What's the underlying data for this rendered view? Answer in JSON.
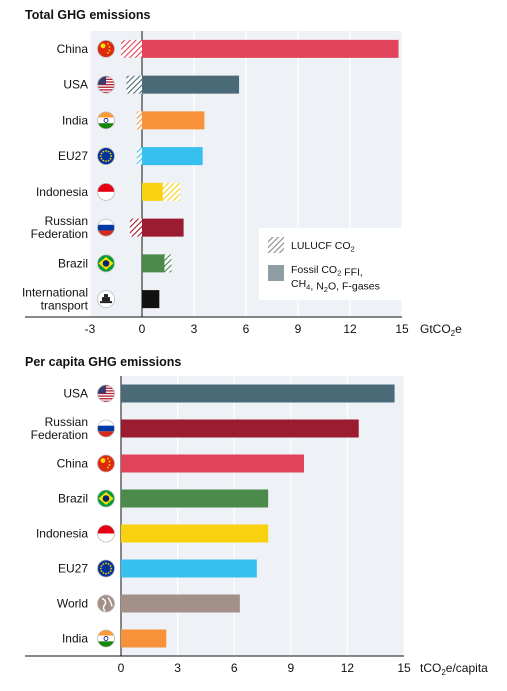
{
  "chart_data": [
    {
      "type": "bar",
      "orientation": "horizontal",
      "stacked": true,
      "title": "Total GHG emissions",
      "xlabel": "GtCO2e",
      "xlim": [
        -3,
        15
      ],
      "xticks": [
        -3,
        0,
        3,
        6,
        9,
        12,
        15
      ],
      "categories": [
        "China",
        "USA",
        "India",
        "EU27",
        "Indonesia",
        "Russian Federation",
        "Brazil",
        "International transport"
      ],
      "category_lines": [
        [
          "China"
        ],
        [
          "USA"
        ],
        [
          "India"
        ],
        [
          "EU27"
        ],
        [
          "Indonesia"
        ],
        [
          "Russian",
          "Federation"
        ],
        [
          "Brazil"
        ],
        [
          "International",
          "transport"
        ]
      ],
      "flag_icons": [
        "china-flag-icon",
        "usa-flag-icon",
        "india-flag-icon",
        "eu-flag-icon",
        "indonesia-flag-icon",
        "russia-flag-icon",
        "brazil-flag-icon",
        "ship-icon"
      ],
      "series": [
        {
          "name": "Fossil CO2 FFI, CH4, N2O, F-gases",
          "values": [
            14.8,
            5.6,
            3.6,
            3.5,
            1.2,
            2.4,
            1.3,
            1.0
          ]
        },
        {
          "name": "LULUCF CO2",
          "values": [
            -1.2,
            -0.9,
            -0.3,
            -0.3,
            1.0,
            -0.7,
            0.4,
            0
          ]
        }
      ],
      "colors": [
        "#e0435a",
        "#4a6a78",
        "#f7923a",
        "#36c0ef",
        "#f8d10f",
        "#9b1b30",
        "#4b8a4b",
        "#111111"
      ],
      "legend": {
        "position": "bottom-right",
        "lulucf_label": "LULUCF CO2",
        "fossil_line1": "Fossil CO2 FFI,",
        "fossil_line2": "CH4, N2O, F-gases"
      },
      "grid": true
    },
    {
      "type": "bar",
      "orientation": "horizontal",
      "title": "Per capita GHG emissions",
      "xlabel": "tCO2e/capita",
      "xlim": [
        0,
        15
      ],
      "xticks": [
        0,
        3,
        6,
        9,
        12,
        15
      ],
      "categories": [
        "USA",
        "Russian Federation",
        "China",
        "Brazil",
        "Indonesia",
        "EU27",
        "World",
        "India"
      ],
      "category_lines": [
        [
          "USA"
        ],
        [
          "Russian",
          "Federation"
        ],
        [
          "China"
        ],
        [
          "Brazil"
        ],
        [
          "Indonesia"
        ],
        [
          "EU27"
        ],
        [
          "World"
        ],
        [
          "India"
        ]
      ],
      "flag_icons": [
        "usa-flag-icon",
        "russia-flag-icon",
        "china-flag-icon",
        "brazil-flag-icon",
        "indonesia-flag-icon",
        "eu-flag-icon",
        "globe-icon",
        "india-flag-icon"
      ],
      "values": [
        14.5,
        12.6,
        9.7,
        7.8,
        7.8,
        7.2,
        6.3,
        2.4
      ],
      "colors": [
        "#4a6a78",
        "#9b1b30",
        "#e0435a",
        "#4b8a4b",
        "#f8d10f",
        "#36c0ef",
        "#a39088",
        "#f7923a"
      ],
      "grid": true
    }
  ]
}
